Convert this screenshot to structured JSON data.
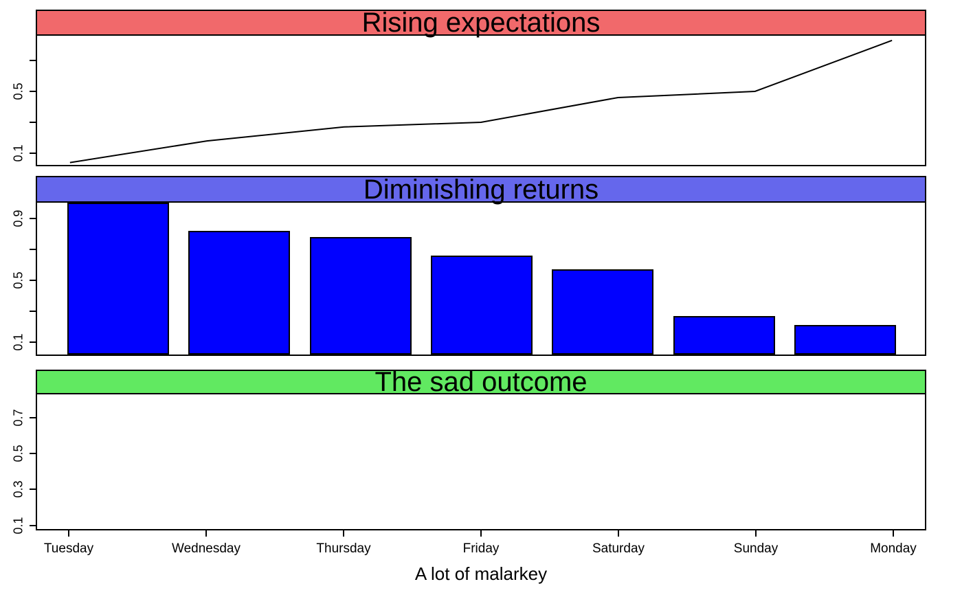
{
  "figure": {
    "background": "#ffffff",
    "box_border_color": "#000000",
    "x_axis": {
      "tick_labels": [
        "Tuesday",
        "Wednesday",
        "Thursday",
        "Friday",
        "Saturday",
        "Sunday",
        "Monday"
      ],
      "title": "A lot of malarkey"
    }
  },
  "chart_data": [
    {
      "type": "line",
      "title": "Rising expectations",
      "header_fill": "#f1696b",
      "line_color": "#000000",
      "x": [
        "Tuesday",
        "Wednesday",
        "Thursday",
        "Friday",
        "Saturday",
        "Sunday",
        "Monday"
      ],
      "values": [
        0.04,
        0.18,
        0.27,
        0.3,
        0.46,
        0.5,
        0.83
      ],
      "ylim": [
        0.007,
        0.86
      ],
      "yticks": [
        0.1,
        0.3,
        0.5,
        0.7
      ],
      "ytick_labels": [
        "0.1",
        "",
        "0.5",
        ""
      ],
      "grid": false,
      "legend": null
    },
    {
      "type": "bar",
      "title": "Diminishing returns",
      "header_fill": "#6567ec",
      "bar_color": "#0101ff",
      "bar_border_color": "#000000",
      "categories": [
        "Tuesday",
        "Wednesday",
        "Thursday",
        "Friday",
        "Saturday",
        "Sunday",
        "Monday"
      ],
      "values": [
        0.99,
        0.81,
        0.77,
        0.65,
        0.56,
        0.26,
        0.2
      ],
      "ylim": [
        0,
        1.0
      ],
      "yticks": [
        0.1,
        0.3,
        0.5,
        0.7,
        0.9
      ],
      "ytick_labels": [
        "0.1",
        "",
        "0.5",
        "",
        "0.9"
      ],
      "grid": false,
      "legend": null
    },
    {
      "type": "line",
      "title": "The sad outcome",
      "header_fill": "#61e961",
      "line_color": "#000000",
      "x": [
        "Tuesday",
        "Wednesday",
        "Thursday",
        "Friday",
        "Saturday",
        "Sunday",
        "Monday"
      ],
      "values": [],
      "ylim": [
        0.064,
        0.83
      ],
      "yticks": [
        0.1,
        0.3,
        0.5,
        0.7
      ],
      "ytick_labels": [
        "0.1",
        "0.3",
        "0.5",
        "0.7"
      ],
      "grid": false,
      "legend": null
    }
  ]
}
